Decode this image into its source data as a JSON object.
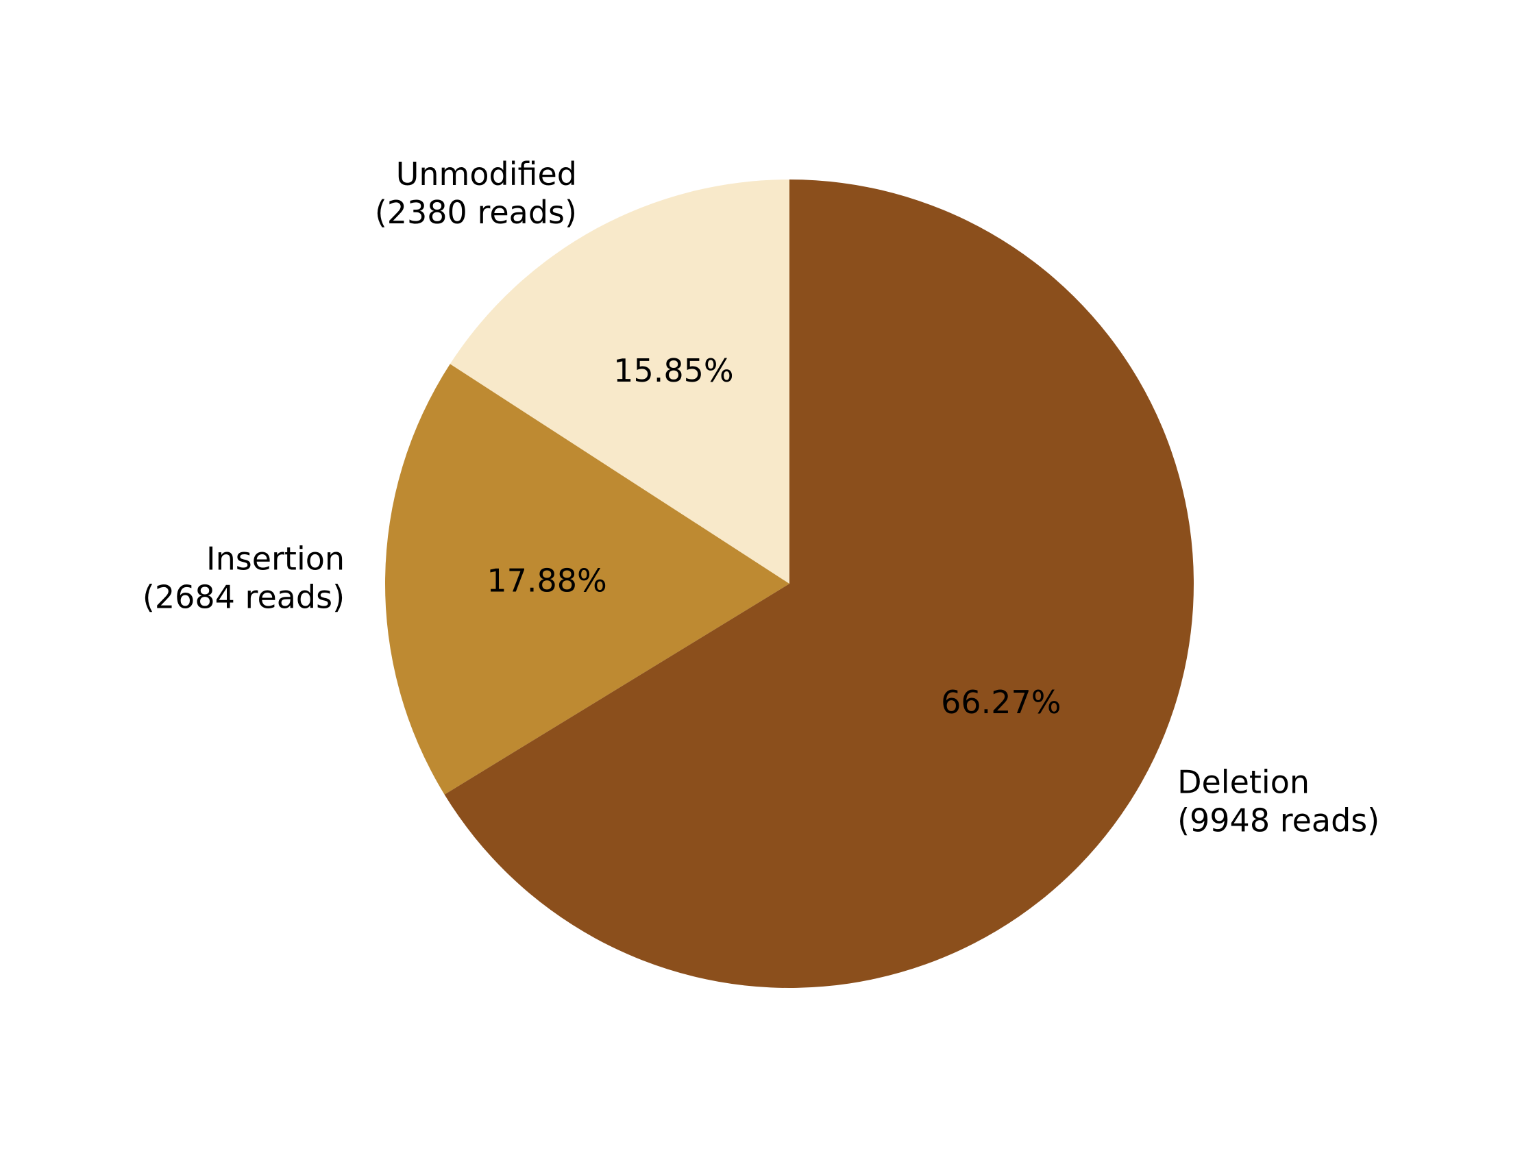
{
  "chart_data": {
    "type": "pie",
    "title": "",
    "start_angle_deg": 90,
    "direction": "counterclockwise",
    "slices": [
      {
        "label": "Unmodified",
        "reads_label": "(2380 reads)",
        "value": 2380,
        "percent_label": "15.85%",
        "color": "#f8e9ca"
      },
      {
        "label": "Insertion",
        "reads_label": "(2684 reads)",
        "value": 2684,
        "percent_label": "17.88%",
        "color": "#be8a32"
      },
      {
        "label": "Deletion",
        "reads_label": "(9948 reads)",
        "value": 9948,
        "percent_label": "66.27%",
        "color": "#8b4f1c"
      }
    ]
  }
}
